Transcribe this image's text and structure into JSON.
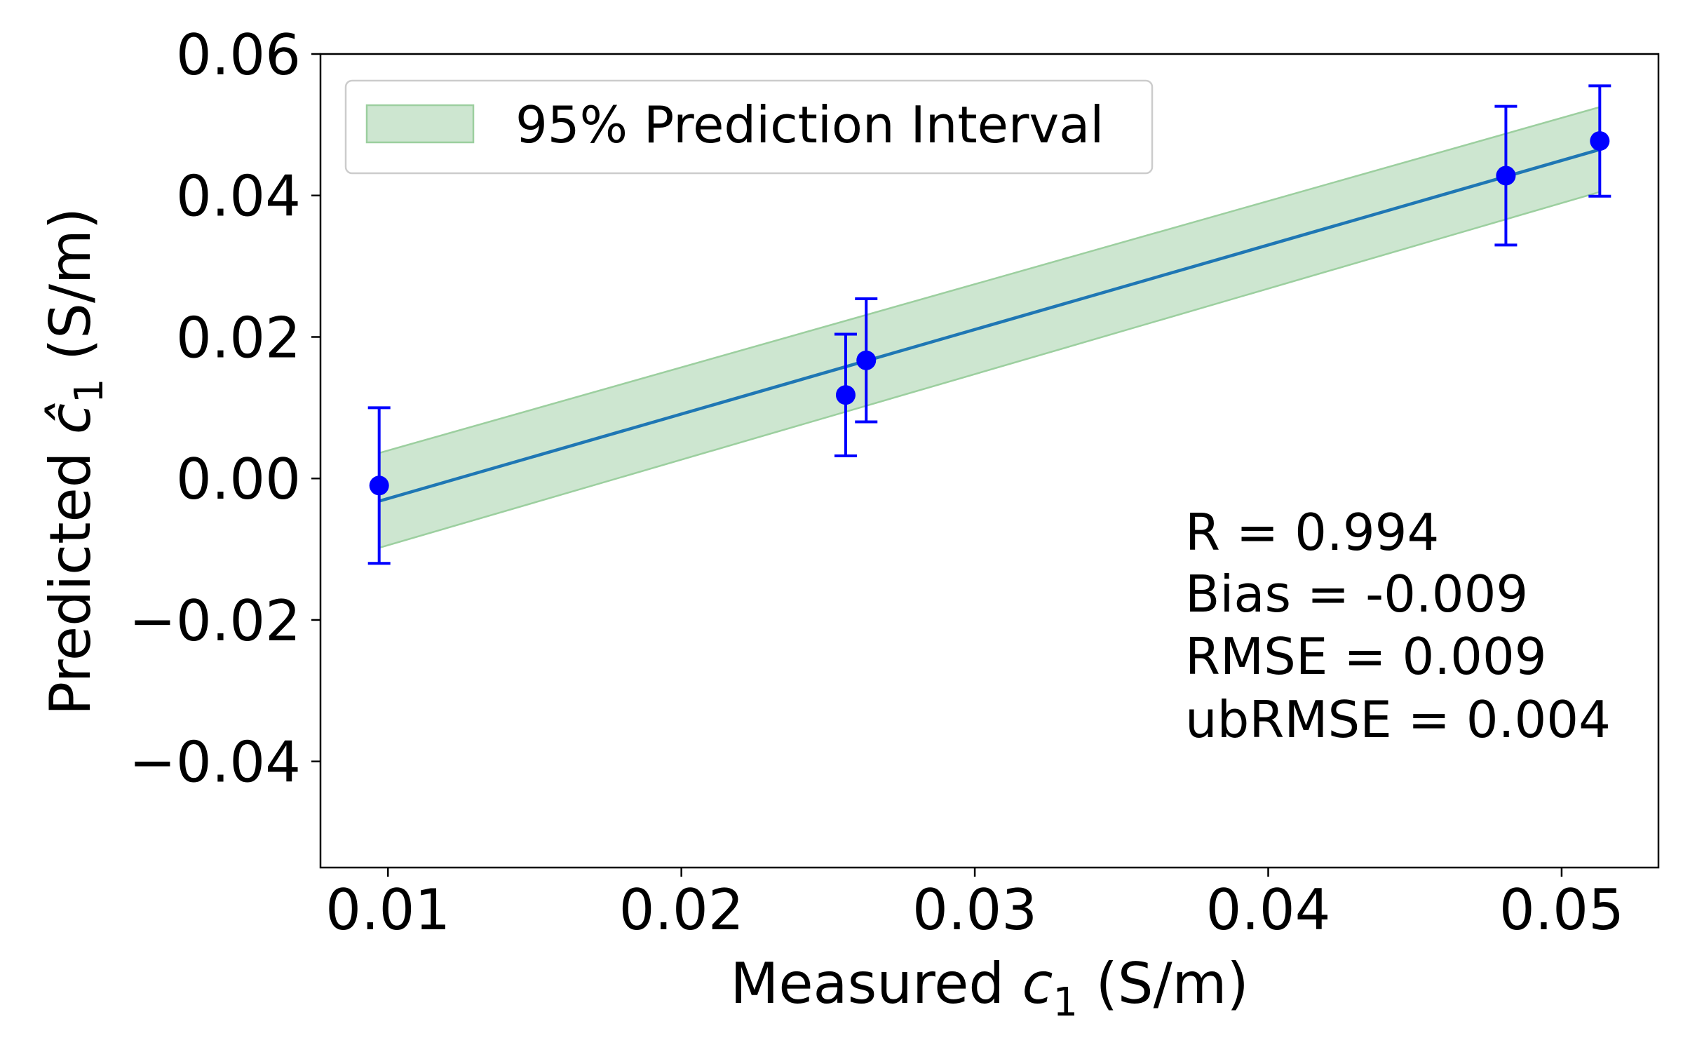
{
  "chart_data": {
    "type": "scatter",
    "title": "",
    "xlabel_prefix": "Measured ",
    "xlabel_var": "c",
    "xlabel_sub": "1",
    "xlabel_unit": " (S/m)",
    "ylabel_prefix": "Predicted ",
    "ylabel_var": "ĉ",
    "ylabel_sub": "1",
    "ylabel_unit": "  (S/m)",
    "xlim": [
      0.0077,
      0.0533
    ],
    "ylim": [
      -0.055,
      0.06
    ],
    "xticks": [
      0.01,
      0.02,
      0.03,
      0.04,
      0.05
    ],
    "xtick_labels": [
      "0.01",
      "0.02",
      "0.03",
      "0.04",
      "0.05"
    ],
    "yticks": [
      -0.04,
      -0.02,
      0.0,
      0.02,
      0.04,
      0.06
    ],
    "ytick_labels": [
      "−0.04",
      "−0.02",
      "0.00",
      "0.02",
      "0.04",
      "0.06"
    ],
    "points": [
      {
        "x": 0.0097,
        "y": -0.001,
        "err": 0.011
      },
      {
        "x": 0.0256,
        "y": 0.0118,
        "err": 0.0086
      },
      {
        "x": 0.0263,
        "y": 0.0167,
        "err": 0.0087
      },
      {
        "x": 0.0481,
        "y": 0.0428,
        "err": 0.0098
      },
      {
        "x": 0.0513,
        "y": 0.0477,
        "err": 0.0078
      }
    ],
    "fit_line": {
      "x": [
        0.0097,
        0.0513
      ],
      "y": [
        -0.0032,
        0.0465
      ]
    },
    "prediction_interval": {
      "x": [
        0.0097,
        0.0513
      ],
      "lower": [
        -0.0098,
        0.0405
      ],
      "upper": [
        0.0036,
        0.0525
      ]
    },
    "legend": {
      "label": "95% Prediction Interval",
      "position": "top-left"
    },
    "stats": [
      "R = 0.994",
      "Bias = -0.009",
      "RMSE = 0.009",
      "ubRMSE = 0.004"
    ],
    "colors": {
      "points": "#0000ff",
      "fit_line": "#1f77b4",
      "band_fill": "#cde6d0",
      "band_edge": "#9ccf9f",
      "axis": "#000000"
    }
  }
}
